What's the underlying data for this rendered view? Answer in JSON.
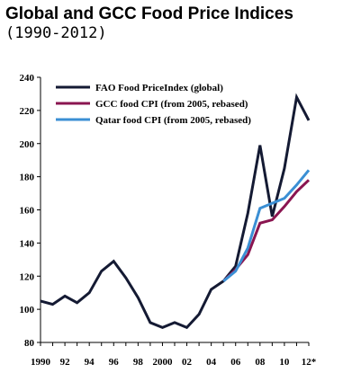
{
  "header": {
    "title": "Global and GCC Food Price Indices",
    "subtitle": "(1990-2012)"
  },
  "chart_data": {
    "type": "line",
    "title": "Global and GCC Food Price Indices",
    "subtitle": "(1990-2012)",
    "xlabel": "",
    "ylabel": "",
    "x": [
      1990,
      1991,
      1992,
      1993,
      1994,
      1995,
      1996,
      1997,
      1998,
      1999,
      2000,
      2001,
      2002,
      2003,
      2004,
      2005,
      2006,
      2007,
      2008,
      2009,
      2010,
      2011,
      2012
    ],
    "xlim": [
      1990,
      2012
    ],
    "ylim": [
      80,
      240
    ],
    "y_ticks": [
      80,
      100,
      120,
      140,
      160,
      180,
      200,
      220,
      240
    ],
    "x_ticks": [
      {
        "x": 1990,
        "label": "1990"
      },
      {
        "x": 1992,
        "label": "92"
      },
      {
        "x": 1994,
        "label": "94"
      },
      {
        "x": 1996,
        "label": "96"
      },
      {
        "x": 1998,
        "label": "98"
      },
      {
        "x": 2000,
        "label": "2000"
      },
      {
        "x": 2002,
        "label": "02"
      },
      {
        "x": 2004,
        "label": "04"
      },
      {
        "x": 2006,
        "label": "06"
      },
      {
        "x": 2008,
        "label": "08"
      },
      {
        "x": 2010,
        "label": "10"
      },
      {
        "x": 2012,
        "label": "12*"
      }
    ],
    "grid": false,
    "legend_position": "top-left",
    "series": [
      {
        "name": "FAO Food PriceIndex (global)",
        "color": "#141a33",
        "x": [
          1990,
          1991,
          1992,
          1993,
          1994,
          1995,
          1996,
          1997,
          1998,
          1999,
          2000,
          2001,
          2002,
          2003,
          2004,
          2005,
          2006,
          2007,
          2008,
          2009,
          2010,
          2011,
          2012
        ],
        "values": [
          105,
          103,
          108,
          104,
          110,
          123,
          129,
          119,
          107,
          92,
          89,
          92,
          89,
          97,
          112,
          117,
          126,
          158,
          199,
          156,
          185,
          228,
          214
        ]
      },
      {
        "name": "GCC food CPI (from 2005, rebased)",
        "color": "#8a1550",
        "x": [
          2005,
          2006,
          2007,
          2008,
          2009,
          2010,
          2011,
          2012
        ],
        "values": [
          117,
          124,
          133,
          152,
          154,
          162,
          171,
          178
        ]
      },
      {
        "name": "Qatar food CPI (from 2005, rebased)",
        "color": "#3b8fd4",
        "x": [
          2005,
          2006,
          2007,
          2008,
          2009,
          2010,
          2011,
          2012
        ],
        "values": [
          117,
          123,
          137,
          161,
          164,
          167,
          175,
          184
        ]
      }
    ]
  }
}
